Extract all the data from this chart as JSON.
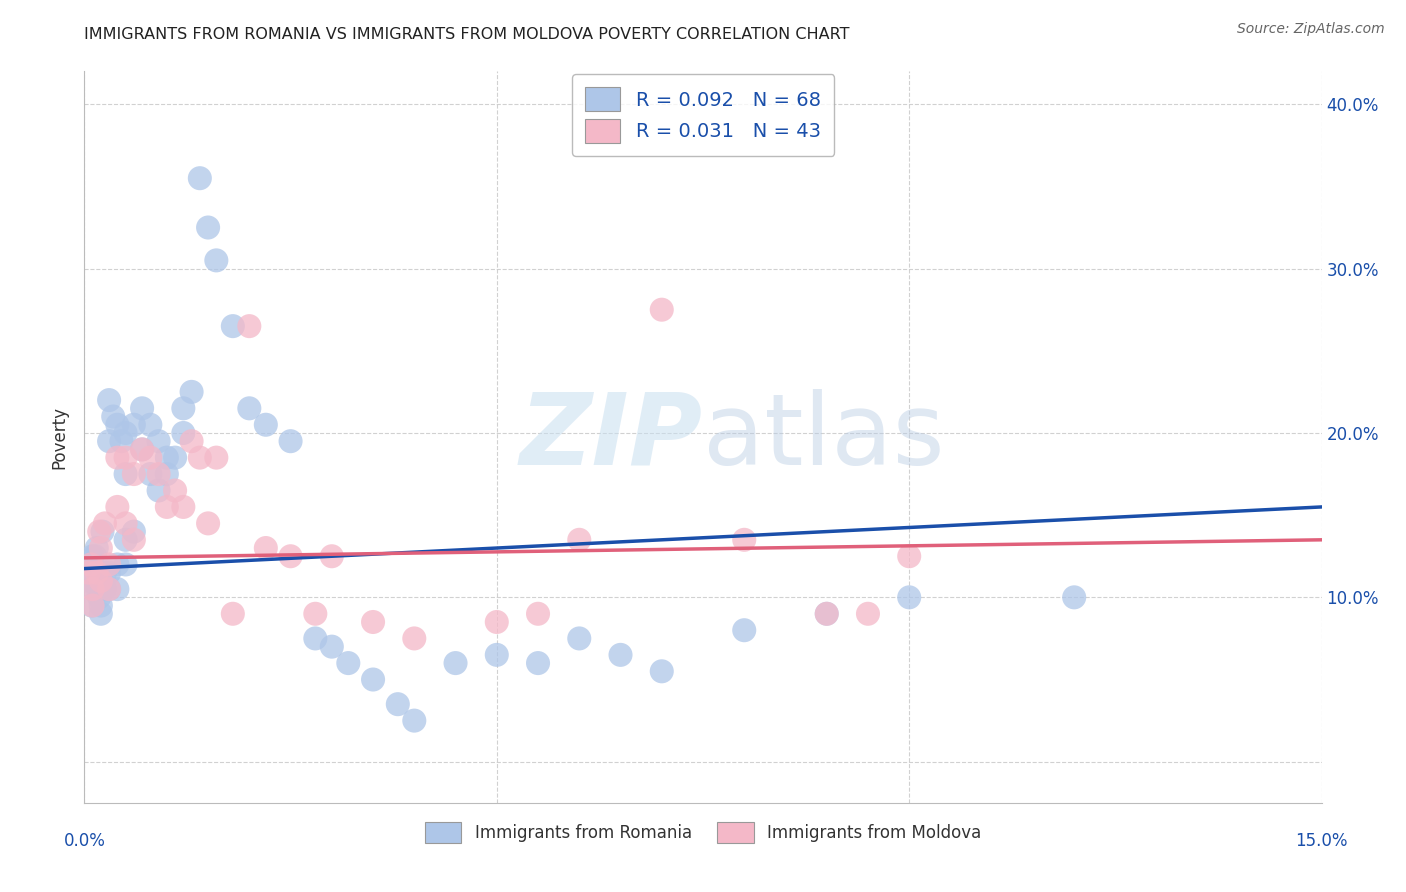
{
  "title": "IMMIGRANTS FROM ROMANIA VS IMMIGRANTS FROM MOLDOVA POVERTY CORRELATION CHART",
  "source": "Source: ZipAtlas.com",
  "ylabel": "Poverty",
  "xlim": [
    0.0,
    0.15
  ],
  "ylim": [
    -0.025,
    0.42
  ],
  "yticks": [
    0.0,
    0.1,
    0.2,
    0.3,
    0.4
  ],
  "right_ytick_labels": [
    "",
    "10.0%",
    "20.0%",
    "30.0%",
    "40.0%"
  ],
  "xticks": [
    0.0,
    0.05,
    0.1,
    0.15
  ],
  "xtick_labels": [
    "0.0%",
    "",
    "",
    "15.0%"
  ],
  "romania_color": "#aec6e8",
  "moldova_color": "#f4b8c8",
  "romania_line_color": "#1a4faa",
  "moldova_line_color": "#e0607a",
  "background_color": "#ffffff",
  "grid_color": "#cccccc",
  "legend_R1": "R = 0.092",
  "legend_N1": "N = 68",
  "legend_R2": "R = 0.031",
  "legend_N2": "N = 43",
  "watermark_zip": "ZIP",
  "watermark_atlas": "atlas",
  "romania_x": [
    0.0005,
    0.0008,
    0.001,
    0.001,
    0.0012,
    0.0015,
    0.0018,
    0.002,
    0.002,
    0.0022,
    0.0025,
    0.003,
    0.003,
    0.003,
    0.0035,
    0.004,
    0.004,
    0.0045,
    0.005,
    0.005,
    0.005,
    0.006,
    0.006,
    0.007,
    0.007,
    0.008,
    0.008,
    0.009,
    0.009,
    0.01,
    0.01,
    0.011,
    0.012,
    0.012,
    0.013,
    0.014,
    0.015,
    0.016,
    0.018,
    0.02,
    0.022,
    0.025,
    0.028,
    0.03,
    0.032,
    0.035,
    0.038,
    0.04,
    0.045,
    0.05,
    0.055,
    0.06,
    0.065,
    0.07,
    0.08,
    0.09,
    0.1,
    0.12,
    0.0003,
    0.0006,
    0.0009,
    0.0013,
    0.0016,
    0.002,
    0.0025,
    0.003,
    0.004,
    0.005
  ],
  "romania_y": [
    0.115,
    0.12,
    0.105,
    0.125,
    0.11,
    0.13,
    0.1,
    0.115,
    0.09,
    0.14,
    0.115,
    0.22,
    0.195,
    0.105,
    0.21,
    0.205,
    0.12,
    0.195,
    0.2,
    0.175,
    0.135,
    0.205,
    0.14,
    0.215,
    0.19,
    0.205,
    0.175,
    0.195,
    0.165,
    0.185,
    0.175,
    0.185,
    0.215,
    0.2,
    0.225,
    0.355,
    0.325,
    0.305,
    0.265,
    0.215,
    0.205,
    0.195,
    0.075,
    0.07,
    0.06,
    0.05,
    0.035,
    0.025,
    0.06,
    0.065,
    0.06,
    0.075,
    0.065,
    0.055,
    0.08,
    0.09,
    0.1,
    0.1,
    0.115,
    0.11,
    0.095,
    0.125,
    0.105,
    0.095,
    0.105,
    0.115,
    0.105,
    0.12
  ],
  "moldova_x": [
    0.0005,
    0.0008,
    0.001,
    0.001,
    0.0015,
    0.0018,
    0.002,
    0.002,
    0.0025,
    0.003,
    0.003,
    0.004,
    0.004,
    0.005,
    0.005,
    0.006,
    0.006,
    0.007,
    0.008,
    0.009,
    0.01,
    0.011,
    0.012,
    0.013,
    0.014,
    0.015,
    0.016,
    0.018,
    0.02,
    0.022,
    0.025,
    0.028,
    0.03,
    0.035,
    0.04,
    0.05,
    0.055,
    0.06,
    0.07,
    0.08,
    0.09,
    0.095,
    0.1
  ],
  "moldova_y": [
    0.115,
    0.12,
    0.105,
    0.095,
    0.115,
    0.14,
    0.13,
    0.11,
    0.145,
    0.12,
    0.105,
    0.185,
    0.155,
    0.185,
    0.145,
    0.175,
    0.135,
    0.19,
    0.185,
    0.175,
    0.155,
    0.165,
    0.155,
    0.195,
    0.185,
    0.145,
    0.185,
    0.09,
    0.265,
    0.13,
    0.125,
    0.09,
    0.125,
    0.085,
    0.075,
    0.085,
    0.09,
    0.135,
    0.275,
    0.135,
    0.09,
    0.09,
    0.125
  ],
  "trend_romania": [
    0.1175,
    0.155
  ],
  "trend_moldova": [
    0.124,
    0.135
  ]
}
